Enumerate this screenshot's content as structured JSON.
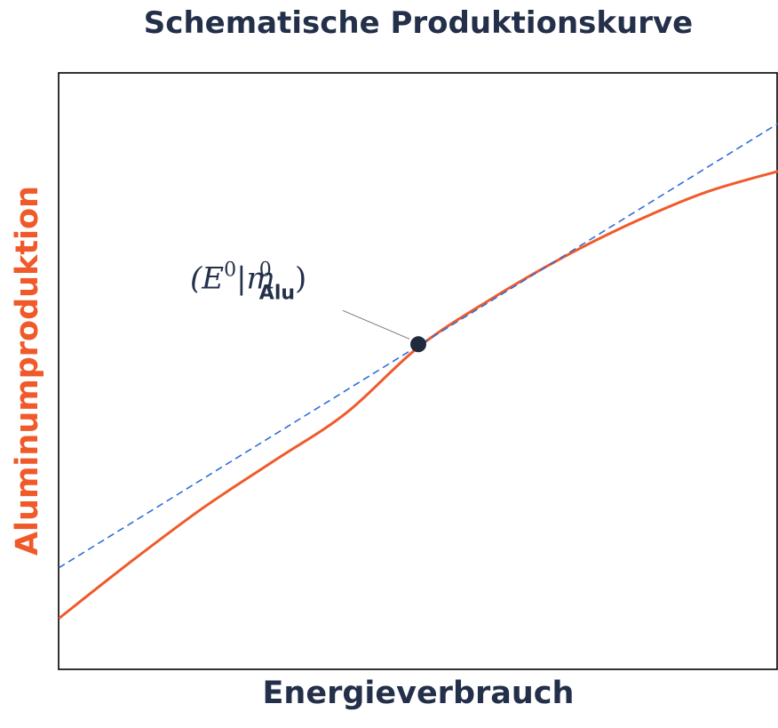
{
  "chart_data": {
    "type": "line",
    "title": "Schematische Produktionskurve",
    "xlabel": "Energieverbrauch",
    "ylabel": "Aluminumproduktion",
    "xlim": [
      0,
      1
    ],
    "ylim": [
      0,
      1
    ],
    "grid": false,
    "series": [
      {
        "color": "#f05a2a",
        "style": "solid",
        "x": [
          0.0,
          0.1,
          0.2,
          0.3,
          0.4,
          0.5,
          0.6,
          0.7,
          0.8,
          0.9,
          1.0
        ],
        "y": [
          0.085,
          0.18,
          0.27,
          0.35,
          0.43,
          0.54,
          0.62,
          0.69,
          0.75,
          0.8,
          0.835
        ]
      },
      {
        "color": "#2f6ed9",
        "style": "dashed",
        "x": [
          0.0,
          1.0
        ],
        "y": [
          0.17,
          0.915
        ]
      }
    ],
    "point": {
      "x": 0.5,
      "y": 0.545,
      "color": "#1f2a3d"
    },
    "annotation": {
      "text_main": "(E",
      "sup1": "0",
      "bar": "|m",
      "sup2": "0",
      "sub": "Alu",
      "close": ")"
    },
    "ylabel_color": "#f05a2a"
  }
}
